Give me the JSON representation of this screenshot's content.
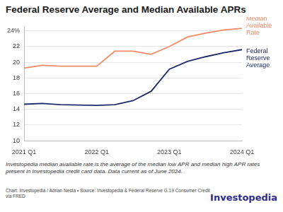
{
  "chart_data": {
    "type": "line",
    "title": "Federal Reserve Average and Median Available APRs",
    "categories": [
      "2021 Q1",
      null,
      null,
      null,
      "2022 Q1",
      null,
      null,
      null,
      "2023 Q1",
      null,
      null,
      null,
      "2024 Q1"
    ],
    "series": [
      {
        "name": "Median Available Rate",
        "color": "#f08a63",
        "values": [
          19.25,
          19.6,
          19.5,
          19.5,
          19.5,
          21.4,
          21.4,
          21.0,
          22.0,
          23.2,
          23.7,
          24.1,
          24.3
        ]
      },
      {
        "name": "Federal Reserve Average",
        "color": "#1f2a6b",
        "values": [
          14.65,
          14.75,
          14.6,
          14.55,
          14.5,
          14.6,
          15.1,
          16.3,
          19.1,
          20.1,
          20.7,
          21.2,
          21.6
        ]
      }
    ],
    "ylim": [
      10,
      24.5
    ],
    "yticks": [
      10,
      12,
      14,
      16,
      18,
      20,
      22,
      {
        "value": 24,
        "label": "24%"
      }
    ],
    "grid": true,
    "footnote": "Investopedia median available rate is the average of the median low APR and median high APR rates present in Investopedia credit card data. Data current as of June 2024.",
    "credit": "Chart: Investopedia / Adrian Nesta • Source: Investopedia & Federal Reserve G.19 Consumer Credit via FRED",
    "brand": "Investopedia"
  }
}
